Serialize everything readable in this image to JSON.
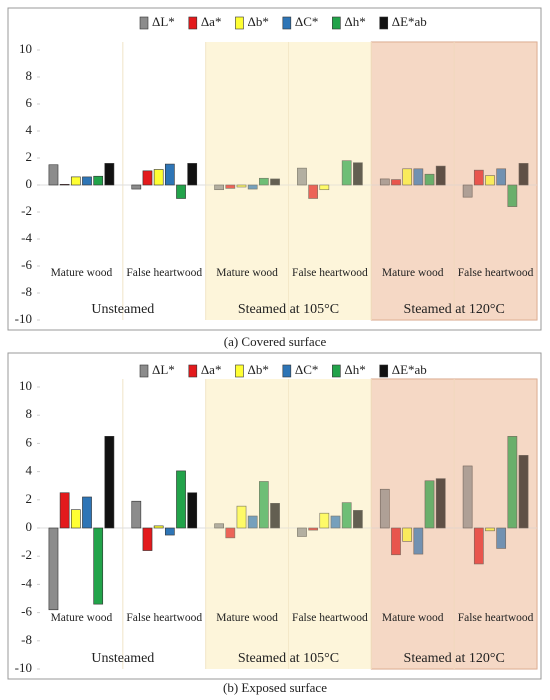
{
  "chart_data": [
    {
      "type": "bar",
      "caption": "(a) Covered surface",
      "categories": [
        "Mature wood",
        "False heartwood",
        "Mature wood",
        "False heartwood",
        "Mature wood",
        "False heartwood"
      ],
      "groups": [
        "Unsteamed",
        "Steamed at 105°C",
        "Steamed at 120°C"
      ],
      "group_colors": [
        "#ffffff",
        "#fbf0c8",
        "#f2c6aa"
      ],
      "ylim": [
        -10,
        10
      ],
      "yticks": [
        -10,
        -8,
        -6,
        -4,
        -2,
        0,
        2,
        4,
        6,
        8,
        10
      ],
      "series": [
        {
          "name": "ΔL*",
          "color": "#8c8c8c",
          "values": [
            1.5,
            -0.3,
            -0.35,
            1.25,
            0.45,
            -0.9
          ]
        },
        {
          "name": "Δa*",
          "color": "#e31a1c",
          "values": [
            0.05,
            1.05,
            -0.25,
            -1.0,
            0.4,
            1.1
          ]
        },
        {
          "name": "Δb*",
          "color": "#ffff33",
          "values": [
            0.6,
            1.15,
            -0.15,
            -0.35,
            1.2,
            0.7
          ]
        },
        {
          "name": "ΔC*",
          "color": "#2e75b6",
          "values": [
            0.6,
            1.55,
            -0.3,
            0,
            1.2,
            1.2
          ]
        },
        {
          "name": "Δh*",
          "color": "#22a34a",
          "values": [
            0.65,
            -1.0,
            0.5,
            1.8,
            0.8,
            -1.6
          ]
        },
        {
          "name": "ΔE*ab",
          "color": "#111111",
          "values": [
            1.6,
            1.6,
            0.45,
            1.65,
            1.4,
            1.6
          ]
        }
      ]
    },
    {
      "type": "bar",
      "caption": "(b) Exposed surface",
      "categories": [
        "Mature wood",
        "False heartwood",
        "Mature wood",
        "False heartwood",
        "Mature wood",
        "False heartwood"
      ],
      "groups": [
        "Unsteamed",
        "Steamed at 105°C",
        "Steamed at 120°C"
      ],
      "group_colors": [
        "#ffffff",
        "#fbf0c8",
        "#f2c6aa"
      ],
      "ylim": [
        -10,
        10
      ],
      "yticks": [
        -10,
        -8,
        -6,
        -4,
        -2,
        0,
        2,
        4,
        6,
        8,
        10
      ],
      "series": [
        {
          "name": "ΔL*",
          "color": "#8c8c8c",
          "values": [
            -5.8,
            1.9,
            0.3,
            -0.6,
            2.75,
            4.4
          ]
        },
        {
          "name": "Δa*",
          "color": "#e31a1c",
          "values": [
            2.5,
            -1.6,
            -0.7,
            -0.15,
            -1.9,
            -2.55
          ]
        },
        {
          "name": "Δb*",
          "color": "#ffff33",
          "values": [
            1.3,
            0.15,
            1.55,
            1.05,
            -0.95,
            -0.2
          ]
        },
        {
          "name": "ΔC*",
          "color": "#2e75b6",
          "values": [
            2.2,
            -0.5,
            0.85,
            0.85,
            -1.85,
            -1.45
          ]
        },
        {
          "name": "Δh*",
          "color": "#22a34a",
          "values": [
            -5.4,
            4.05,
            3.3,
            1.8,
            3.35,
            6.5
          ]
        },
        {
          "name": "ΔE*ab",
          "color": "#111111",
          "values": [
            6.5,
            2.5,
            1.75,
            1.25,
            3.5,
            5.15
          ]
        }
      ]
    }
  ]
}
